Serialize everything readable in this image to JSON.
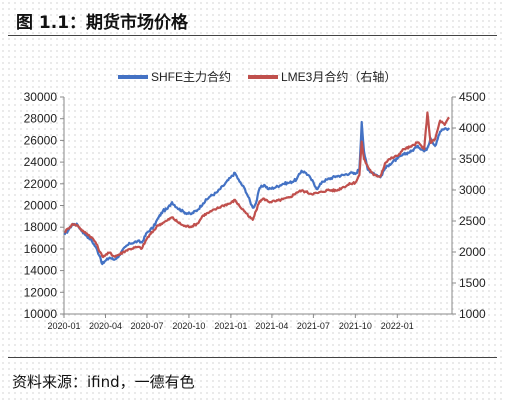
{
  "figure_title": "图 1.1：期货市场价格",
  "source_note": "资料来源：ifind，一德有色",
  "chart_data": {
    "type": "line",
    "title": "",
    "xlabel": "",
    "ylabel": "",
    "y2label": "",
    "legend_position": "top-center",
    "grid": false,
    "x_ticks": [
      "2020-01",
      "2020-04",
      "2020-07",
      "2020-10",
      "2021-01",
      "2021-04",
      "2021-07",
      "2021-10",
      "2022-01"
    ],
    "x_range": [
      "2020-01",
      "2022-05"
    ],
    "ylim": [
      10000,
      30000
    ],
    "y_ticks": [
      10000,
      12000,
      14000,
      16000,
      18000,
      20000,
      22000,
      24000,
      26000,
      28000,
      30000
    ],
    "y2lim": [
      1000,
      4500
    ],
    "y2_ticks": [
      1000,
      1500,
      2000,
      2500,
      3000,
      3500,
      4000,
      4500
    ],
    "series": [
      {
        "name": "SHFE主力合约",
        "axis": "left",
        "color": "#4472c4",
        "points": [
          [
            "2020-01-02",
            17300
          ],
          [
            "2020-01-10",
            17700
          ],
          [
            "2020-01-20",
            18300
          ],
          [
            "2020-01-31",
            18200
          ],
          [
            "2020-02-10",
            17600
          ],
          [
            "2020-02-20",
            17200
          ],
          [
            "2020-03-01",
            16800
          ],
          [
            "2020-03-10",
            16200
          ],
          [
            "2020-03-20",
            15300
          ],
          [
            "2020-03-25",
            14600
          ],
          [
            "2020-04-01",
            14900
          ],
          [
            "2020-04-10",
            15200
          ],
          [
            "2020-04-20",
            15000
          ],
          [
            "2020-05-01",
            15400
          ],
          [
            "2020-05-15",
            16200
          ],
          [
            "2020-05-25",
            16500
          ],
          [
            "2020-06-10",
            16700
          ],
          [
            "2020-06-20",
            16600
          ],
          [
            "2020-07-01",
            17500
          ],
          [
            "2020-07-15",
            18000
          ],
          [
            "2020-07-25",
            18800
          ],
          [
            "2020-08-05",
            19500
          ],
          [
            "2020-08-15",
            19700
          ],
          [
            "2020-08-25",
            20300
          ],
          [
            "2020-09-05",
            19800
          ],
          [
            "2020-09-20",
            19400
          ],
          [
            "2020-10-05",
            19200
          ],
          [
            "2020-10-20",
            19600
          ],
          [
            "2020-11-01",
            20200
          ],
          [
            "2020-11-15",
            20800
          ],
          [
            "2020-12-01",
            21200
          ],
          [
            "2020-12-15",
            21800
          ],
          [
            "2021-01-01",
            22600
          ],
          [
            "2021-01-10",
            23000
          ],
          [
            "2021-01-20",
            22200
          ],
          [
            "2021-02-01",
            21500
          ],
          [
            "2021-02-08",
            20800
          ],
          [
            "2021-02-18",
            19800
          ],
          [
            "2021-02-25",
            20200
          ],
          [
            "2021-03-05",
            21600
          ],
          [
            "2021-03-15",
            21900
          ],
          [
            "2021-03-25",
            21500
          ],
          [
            "2021-04-10",
            21700
          ],
          [
            "2021-04-25",
            22000
          ],
          [
            "2021-05-10",
            22100
          ],
          [
            "2021-05-25",
            22400
          ],
          [
            "2021-06-05",
            23200
          ],
          [
            "2021-06-15",
            23000
          ],
          [
            "2021-06-25",
            22500
          ],
          [
            "2021-07-10",
            21500
          ],
          [
            "2021-07-20",
            22200
          ],
          [
            "2021-08-01",
            22400
          ],
          [
            "2021-08-20",
            22700
          ],
          [
            "2021-09-05",
            22800
          ],
          [
            "2021-09-20",
            23000
          ],
          [
            "2021-10-01",
            22900
          ],
          [
            "2021-10-10",
            23400
          ],
          [
            "2021-10-15",
            27700
          ],
          [
            "2021-10-20",
            25000
          ],
          [
            "2021-10-28",
            23300
          ],
          [
            "2021-11-10",
            23000
          ],
          [
            "2021-11-25",
            22600
          ],
          [
            "2021-12-05",
            23400
          ],
          [
            "2021-12-15",
            23800
          ],
          [
            "2022-01-01",
            24300
          ],
          [
            "2022-01-15",
            24700
          ],
          [
            "2022-02-01",
            25000
          ],
          [
            "2022-02-15",
            25500
          ],
          [
            "2022-03-01",
            25000
          ],
          [
            "2022-03-08",
            25300
          ],
          [
            "2022-03-15",
            26200
          ],
          [
            "2022-03-25",
            25500
          ],
          [
            "2022-04-05",
            26800
          ],
          [
            "2022-04-15",
            27100
          ],
          [
            "2022-04-25",
            27000
          ]
        ]
      },
      {
        "name": "LME3月合约（右轴）",
        "axis": "right",
        "color": "#c0504d",
        "points": [
          [
            "2020-01-02",
            2320
          ],
          [
            "2020-01-10",
            2380
          ],
          [
            "2020-01-20",
            2450
          ],
          [
            "2020-01-31",
            2430
          ],
          [
            "2020-02-10",
            2340
          ],
          [
            "2020-02-20",
            2300
          ],
          [
            "2020-03-01",
            2240
          ],
          [
            "2020-03-10",
            2160
          ],
          [
            "2020-03-20",
            2000
          ],
          [
            "2020-03-25",
            1930
          ],
          [
            "2020-04-01",
            1950
          ],
          [
            "2020-04-10",
            1990
          ],
          [
            "2020-04-20",
            1930
          ],
          [
            "2020-05-01",
            1960
          ],
          [
            "2020-05-15",
            2020
          ],
          [
            "2020-05-25",
            2050
          ],
          [
            "2020-06-10",
            2080
          ],
          [
            "2020-06-20",
            2060
          ],
          [
            "2020-07-01",
            2220
          ],
          [
            "2020-07-15",
            2340
          ],
          [
            "2020-07-25",
            2430
          ],
          [
            "2020-08-05",
            2470
          ],
          [
            "2020-08-15",
            2510
          ],
          [
            "2020-08-25",
            2560
          ],
          [
            "2020-09-05",
            2490
          ],
          [
            "2020-09-20",
            2420
          ],
          [
            "2020-10-05",
            2410
          ],
          [
            "2020-10-20",
            2460
          ],
          [
            "2020-11-01",
            2590
          ],
          [
            "2020-11-15",
            2640
          ],
          [
            "2020-12-01",
            2700
          ],
          [
            "2020-12-15",
            2750
          ],
          [
            "2021-01-01",
            2790
          ],
          [
            "2021-01-10",
            2840
          ],
          [
            "2021-01-20",
            2740
          ],
          [
            "2021-02-01",
            2650
          ],
          [
            "2021-02-08",
            2580
          ],
          [
            "2021-02-18",
            2520
          ],
          [
            "2021-02-25",
            2660
          ],
          [
            "2021-03-05",
            2820
          ],
          [
            "2021-03-15",
            2860
          ],
          [
            "2021-03-25",
            2810
          ],
          [
            "2021-04-10",
            2820
          ],
          [
            "2021-04-25",
            2850
          ],
          [
            "2021-05-10",
            2880
          ],
          [
            "2021-05-25",
            2960
          ],
          [
            "2021-06-05",
            2990
          ],
          [
            "2021-06-15",
            2970
          ],
          [
            "2021-06-25",
            2940
          ],
          [
            "2021-07-10",
            2950
          ],
          [
            "2021-07-20",
            2970
          ],
          [
            "2021-08-01",
            3000
          ],
          [
            "2021-08-20",
            2990
          ],
          [
            "2021-09-05",
            3050
          ],
          [
            "2021-09-20",
            3100
          ],
          [
            "2021-10-01",
            3120
          ],
          [
            "2021-10-10",
            3240
          ],
          [
            "2021-10-15",
            3780
          ],
          [
            "2021-10-20",
            3500
          ],
          [
            "2021-10-28",
            3380
          ],
          [
            "2021-11-10",
            3240
          ],
          [
            "2021-11-25",
            3220
          ],
          [
            "2021-12-05",
            3430
          ],
          [
            "2021-12-15",
            3500
          ],
          [
            "2022-01-01",
            3550
          ],
          [
            "2022-01-15",
            3660
          ],
          [
            "2022-02-01",
            3700
          ],
          [
            "2022-02-15",
            3770
          ],
          [
            "2022-03-01",
            3660
          ],
          [
            "2022-03-08",
            4250
          ],
          [
            "2022-03-15",
            3760
          ],
          [
            "2022-03-25",
            3820
          ],
          [
            "2022-04-05",
            4120
          ],
          [
            "2022-04-15",
            4050
          ],
          [
            "2022-04-25",
            4170
          ]
        ]
      }
    ]
  }
}
